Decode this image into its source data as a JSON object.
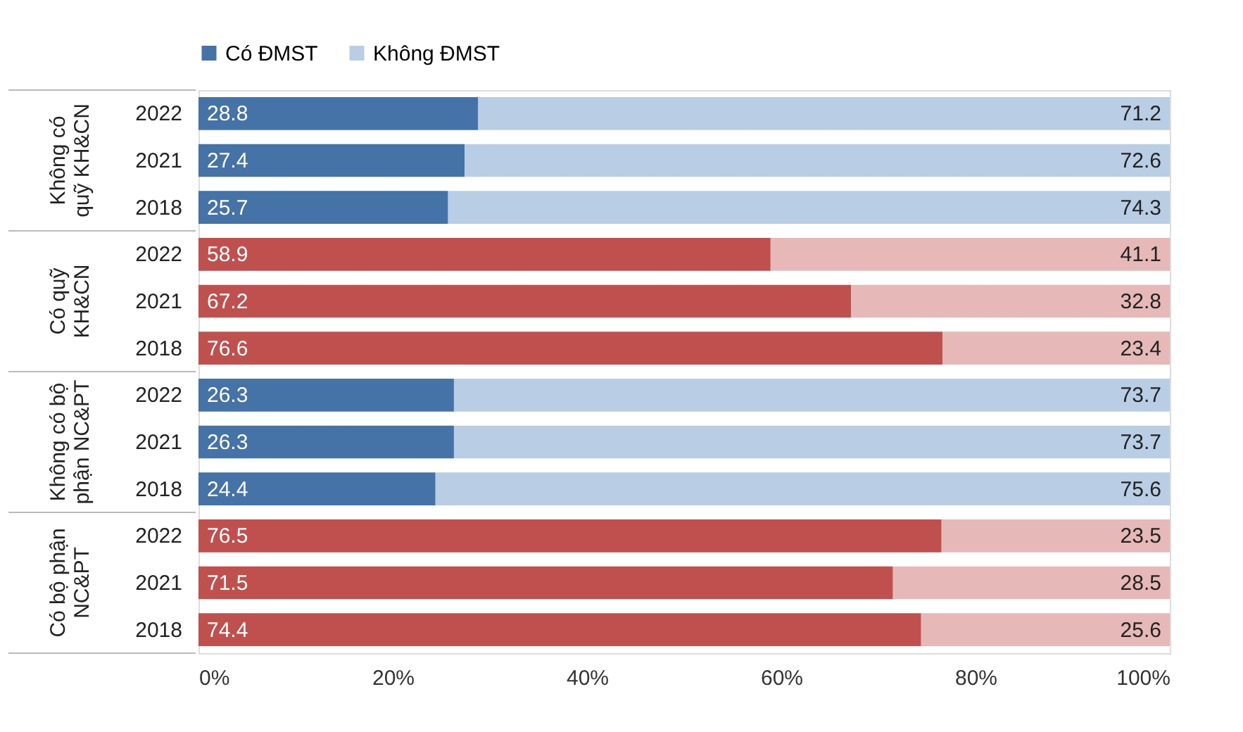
{
  "chart_data": {
    "type": "bar",
    "orientation": "horizontal",
    "stacked": true,
    "data_labels": true,
    "legend": "top",
    "grid": false,
    "categories": [
      "2022",
      "2021",
      "2018",
      "2022",
      "2021",
      "2018",
      "2022",
      "2021",
      "2018",
      "2022",
      "2021",
      "2018"
    ],
    "series": [
      {
        "name": "Có ĐMST",
        "color": "#4572a7",
        "colors": [
          "#4572a7",
          "#4572a7",
          "#4572a7",
          "#c0504d",
          "#c0504d",
          "#c0504d",
          "#4572a7",
          "#4572a7",
          "#4572a7",
          "#c0504d",
          "#c0504d",
          "#c0504d"
        ],
        "values": [
          28.8,
          27.4,
          25.7,
          58.9,
          67.2,
          76.6,
          26.3,
          26.3,
          24.4,
          76.5,
          71.5,
          74.4
        ]
      },
      {
        "name": "Không ĐMST",
        "color": "#b9cde5",
        "colors": [
          "#b9cde5",
          "#b9cde5",
          "#b9cde5",
          "#e6b9b8",
          "#e6b9b8",
          "#e6b9b8",
          "#b9cde5",
          "#b9cde5",
          "#b9cde5",
          "#e6b9b8",
          "#e6b9b8",
          "#e6b9b8"
        ],
        "values": [
          71.2,
          72.6,
          74.3,
          41.1,
          32.8,
          23.4,
          73.7,
          73.7,
          75.6,
          23.5,
          28.5,
          25.6
        ]
      }
    ],
    "xlim": [
      0,
      100
    ],
    "xticks": [
      {
        "value": 0,
        "label": "0%"
      },
      {
        "value": 20,
        "label": "20%"
      },
      {
        "value": 40,
        "label": "40%"
      },
      {
        "value": 60,
        "label": "60%"
      },
      {
        "value": 80,
        "label": "80%"
      },
      {
        "value": 100,
        "label": "100%"
      }
    ],
    "annotations": [
      "Không có quỹ KH&CN",
      "Có quỹ KH&CN",
      "Không có bộ phận NC&PT",
      "Có bộ phận NC&PT"
    ]
  }
}
